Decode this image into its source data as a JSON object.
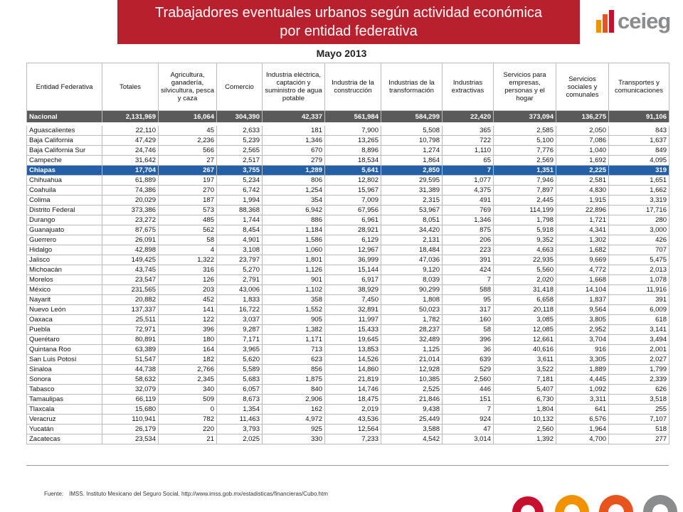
{
  "header": {
    "title": [
      "Trabajadores eventuales urbanos según actividad económica",
      "por entidad federativa"
    ],
    "logo": "ceieg",
    "subtitle": "Mayo 2013"
  },
  "table": {
    "columns": [
      "Entidad Federativa",
      "Totales",
      "Agricultura, ganadería, silvicultura, pesca y caza",
      "Comercio",
      "Industria eléctrica, captación y suministro de agua potable",
      "Industria de la construcción",
      "Industrias de la transformación",
      "Industrias extractivas",
      "Servicios para empresas, personas y el hogar",
      "Servicios sociales y comunales",
      "Transportes y comunicaciones"
    ],
    "rows": [
      [
        "Nacional",
        "2,131,969",
        "16,064",
        "304,390",
        "42,337",
        "561,984",
        "584,299",
        "22,420",
        "373,094",
        "136,275",
        "91,106"
      ],
      [
        "Aguascalientes",
        "22,110",
        "45",
        "2,633",
        "181",
        "7,900",
        "5,508",
        "365",
        "2,585",
        "2,050",
        "843"
      ],
      [
        "Baja California",
        "47,429",
        "2,236",
        "5,239",
        "1,346",
        "13,265",
        "10,798",
        "722",
        "5,100",
        "7,086",
        "1,637"
      ],
      [
        "Baja California Sur",
        "24,746",
        "566",
        "2,565",
        "670",
        "8,896",
        "1,274",
        "1,110",
        "7,776",
        "1,040",
        "849"
      ],
      [
        "Campeche",
        "31,642",
        "27",
        "2,517",
        "279",
        "18,534",
        "1,864",
        "65",
        "2,569",
        "1,692",
        "4,095"
      ],
      [
        "Chiapas",
        "17,704",
        "267",
        "3,755",
        "1,289",
        "5,641",
        "2,850",
        "7",
        "1,351",
        "2,225",
        "319"
      ],
      [
        "Chihuahua",
        "61,889",
        "197",
        "5,234",
        "806",
        "12,802",
        "29,595",
        "1,077",
        "7,946",
        "2,581",
        "1,651"
      ],
      [
        "Coahuila",
        "74,386",
        "270",
        "6,742",
        "1,254",
        "15,967",
        "31,389",
        "4,375",
        "7,897",
        "4,830",
        "1,662"
      ],
      [
        "Colima",
        "20,029",
        "187",
        "1,994",
        "354",
        "7,009",
        "2,315",
        "491",
        "2,445",
        "1,915",
        "3,319"
      ],
      [
        "Distrito Federal",
        "373,386",
        "573",
        "88,368",
        "6,942",
        "67,956",
        "53,967",
        "769",
        "114,199",
        "22,896",
        "17,716"
      ],
      [
        "Durango",
        "23,272",
        "485",
        "1,744",
        "886",
        "6,961",
        "8,051",
        "1,346",
        "1,798",
        "1,721",
        "280"
      ],
      [
        "Guanajuato",
        "87,675",
        "562",
        "8,454",
        "1,184",
        "28,921",
        "34,420",
        "875",
        "5,918",
        "4,341",
        "3,000"
      ],
      [
        "Guerrero",
        "26,091",
        "58",
        "4,901",
        "1,586",
        "6,129",
        "2,131",
        "206",
        "9,352",
        "1,302",
        "426"
      ],
      [
        "Hidalgo",
        "42,898",
        "4",
        "3,108",
        "1,060",
        "12,967",
        "18,484",
        "223",
        "4,663",
        "1,682",
        "707"
      ],
      [
        "Jalisco",
        "149,425",
        "1,322",
        "23,797",
        "1,801",
        "36,999",
        "47,036",
        "391",
        "22,935",
        "9,669",
        "5,475"
      ],
      [
        "Michoacán",
        "43,745",
        "316",
        "5,270",
        "1,126",
        "15,144",
        "9,120",
        "424",
        "5,560",
        "4,772",
        "2,013"
      ],
      [
        "Morelos",
        "23,547",
        "126",
        "2,791",
        "901",
        "6,917",
        "8,039",
        "7",
        "2,020",
        "1,668",
        "1,078"
      ],
      [
        "México",
        "231,565",
        "203",
        "43,006",
        "1,102",
        "38,929",
        "90,299",
        "588",
        "31,418",
        "14,104",
        "11,916"
      ],
      [
        "Nayarit",
        "20,882",
        "452",
        "1,833",
        "358",
        "7,450",
        "1,808",
        "95",
        "6,658",
        "1,837",
        "391"
      ],
      [
        "Nuevo León",
        "137,337",
        "141",
        "16,722",
        "1,552",
        "32,891",
        "50,023",
        "317",
        "20,118",
        "9,564",
        "6,009"
      ],
      [
        "Oaxaca",
        "25,511",
        "122",
        "3,037",
        "905",
        "11,997",
        "1,782",
        "160",
        "3,085",
        "3,805",
        "618"
      ],
      [
        "Puebla",
        "72,971",
        "396",
        "9,287",
        "1,382",
        "15,433",
        "28,237",
        "58",
        "12,085",
        "2,952",
        "3,141"
      ],
      [
        "Querétaro",
        "80,891",
        "180",
        "7,171",
        "1,171",
        "19,645",
        "32,489",
        "396",
        "12,661",
        "3,704",
        "3,494"
      ],
      [
        "Quintana Roo",
        "63,389",
        "164",
        "3,965",
        "713",
        "13,853",
        "1,125",
        "36",
        "40,616",
        "916",
        "2,001"
      ],
      [
        "San Luis Potosí",
        "51,547",
        "182",
        "5,620",
        "623",
        "14,526",
        "21,014",
        "639",
        "3,611",
        "3,305",
        "2,027"
      ],
      [
        "Sinaloa",
        "44,738",
        "2,766",
        "5,589",
        "856",
        "14,860",
        "12,928",
        "529",
        "3,522",
        "1,889",
        "1,799"
      ],
      [
        "Sonora",
        "58,632",
        "2,345",
        "5,683",
        "1,875",
        "21,819",
        "10,385",
        "2,560",
        "7,181",
        "4,445",
        "2,339"
      ],
      [
        "Tabasco",
        "32,079",
        "340",
        "6,057",
        "840",
        "14,746",
        "2,525",
        "446",
        "5,407",
        "1,092",
        "626"
      ],
      [
        "Tamaulipas",
        "66,119",
        "509",
        "8,673",
        "2,906",
        "18,475",
        "21,846",
        "151",
        "6,730",
        "3,311",
        "3,518"
      ],
      [
        "Tlaxcala",
        "15,680",
        "0",
        "1,354",
        "162",
        "2,019",
        "9,438",
        "7",
        "1,804",
        "641",
        "255"
      ],
      [
        "Veracruz",
        "110,941",
        "782",
        "11,463",
        "4,972",
        "43,536",
        "25,449",
        "924",
        "10,132",
        "6,576",
        "7,107"
      ],
      [
        "Yucatán",
        "26,179",
        "220",
        "3,793",
        "925",
        "12,564",
        "3,588",
        "47",
        "2,560",
        "1,964",
        "518"
      ],
      [
        "Zacatecas",
        "23,534",
        "21",
        "2,025",
        "330",
        "7,233",
        "4,542",
        "3,014",
        "1,392",
        "4,700",
        "277"
      ]
    ]
  },
  "footer": {
    "source_label": "Fuente:",
    "source": "IMSS. Instituto Mexicano del Seguro Social. http://www.imss.gob.mx/estadisticas/financieras/Cubo.htm"
  }
}
